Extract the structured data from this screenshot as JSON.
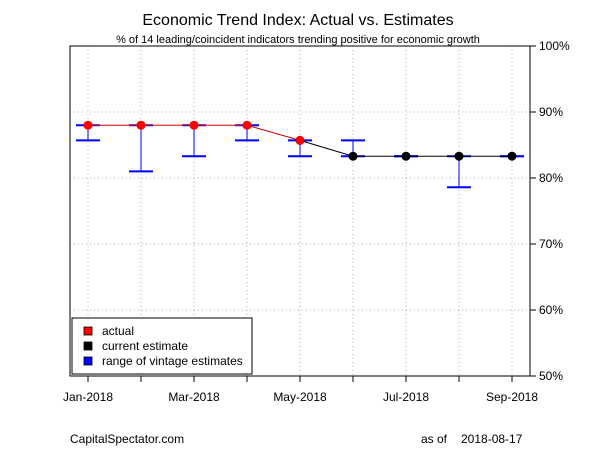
{
  "chart_data": {
    "type": "line",
    "title": "Economic Trend Index: Actual vs. Estimates",
    "subtitle": "% of 14 leading/coincident indicators trending positive for economic growth",
    "x_months": [
      "2018-01",
      "2018-02",
      "2018-03",
      "2018-04",
      "2018-05",
      "2018-06",
      "2018-07",
      "2018-08",
      "2018-09"
    ],
    "x_tick_labels": [
      "Jan-2018",
      "",
      "Mar-2018",
      "",
      "May-2018",
      "",
      "Jul-2018",
      "",
      "Sep-2018"
    ],
    "y_ticks": [
      50,
      60,
      70,
      80,
      90,
      100
    ],
    "y_tick_labels": [
      "50%",
      "60%",
      "70%",
      "80%",
      "90%",
      "100%"
    ],
    "ylim": [
      50,
      100
    ],
    "grid": true,
    "legend_position": "bottom-left",
    "series": [
      {
        "name": "actual",
        "color": "#ff0000",
        "line_color": "#cc0000",
        "months": [
          "2018-01",
          "2018-02",
          "2018-03",
          "2018-04",
          "2018-05"
        ],
        "values": [
          88.0,
          88.0,
          88.0,
          88.0,
          85.7
        ]
      },
      {
        "name": "current estimate",
        "color": "#000000",
        "line_color": "#000000",
        "months": [
          "2018-05",
          "2018-06",
          "2018-07",
          "2018-08",
          "2018-09"
        ],
        "values": [
          85.7,
          83.3,
          83.3,
          83.3,
          83.3
        ]
      },
      {
        "name": "range of vintage estimates",
        "color": "#0000ff",
        "months": [
          "2018-01",
          "2018-02",
          "2018-03",
          "2018-04",
          "2018-05",
          "2018-06",
          "2018-07",
          "2018-08",
          "2018-09"
        ],
        "low": [
          85.7,
          81.0,
          83.3,
          85.7,
          83.3,
          83.3,
          83.3,
          78.6,
          83.3
        ],
        "high": [
          88.0,
          88.0,
          88.0,
          88.0,
          85.7,
          85.7,
          83.3,
          83.3,
          83.3
        ]
      }
    ]
  },
  "footer": {
    "source": "CapitalSpectator.com",
    "as_of_label": "as of",
    "as_of_date": "2018-08-17"
  }
}
